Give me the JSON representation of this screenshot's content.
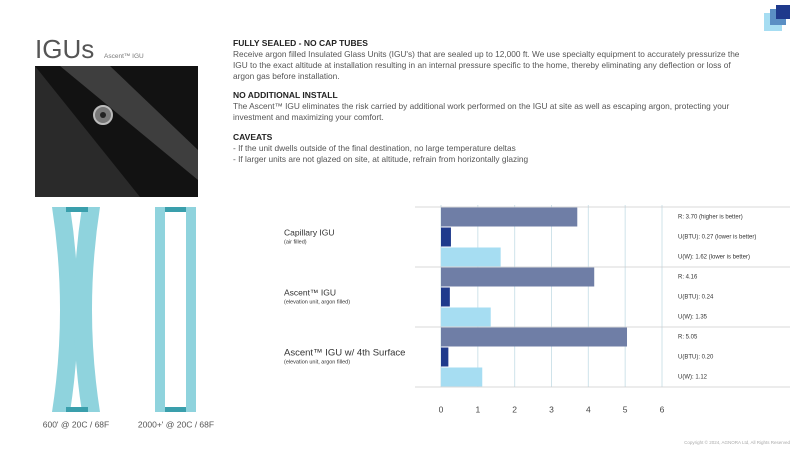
{
  "header": {
    "title": "IGUs",
    "subtitle": "Ascent™ IGU"
  },
  "sections": [
    {
      "heading": "FULLY SEALED  - NO CAP TUBES",
      "body": "Receive argon filled Insulated Glass Units (IGU's) that are sealed up to 12,000 ft. We use specialty equipment to accurately pressurize the IGU to the exact altitude at installation resulting in an internal pressure specific to the home, thereby eliminating any deflection or loss of argon gas before installation."
    },
    {
      "heading": "NO ADDITIONAL INSTALL",
      "body": "The Ascent™ IGU eliminates the risk carried by additional work performed on the IGU at site as well as escaping argon, protecting your investment and maximizing your comfort."
    },
    {
      "heading": "CAVEATS",
      "items": [
        "If the unit dwells outside of the final destination, no large temperature deltas",
        "If larger units are not glazed on site, at altitude, refrain from horizontally glazing"
      ]
    }
  ],
  "diagrams": [
    {
      "caption": "600' @ 20C / 68F"
    },
    {
      "caption": "2000+' @ 20C / 68F"
    }
  ],
  "footer": "Copyright © 2024, AGNORA Ltd, All Rights Reserved",
  "chart_data": {
    "type": "bar",
    "orientation": "horizontal",
    "categories": [
      "Capillary IGU",
      "Ascent™ IGU",
      "Ascent™ IGU w/ 4th Surface"
    ],
    "category_notes": [
      "(air filled)",
      "(elevation unit, argon filled)",
      "(elevation unit, argon filled)"
    ],
    "series": [
      {
        "color": "#6f7ea6",
        "values": [
          3.7,
          4.16,
          5.05
        ],
        "value_labels": [
          "R: 3.70 (higher is better)",
          "R: 4.16",
          "R: 5.05"
        ]
      },
      {
        "color": "#1f3a8c",
        "values": [
          0.27,
          0.24,
          0.2
        ],
        "value_labels": [
          "U(BTU): 0.27 (lower is better)",
          "U(BTU): 0.24",
          "U(BTU): 0.20"
        ]
      },
      {
        "color": "#a6ddf2",
        "values": [
          1.62,
          1.35,
          1.12
        ],
        "value_labels": [
          "U(W): 1.62 (lower is better)",
          "U(W): 1.35",
          "U(W): 1.12"
        ]
      }
    ],
    "xlim": [
      0,
      6
    ],
    "xticks": [
      0,
      1,
      2,
      3,
      4,
      5,
      6
    ],
    "grid": true
  }
}
